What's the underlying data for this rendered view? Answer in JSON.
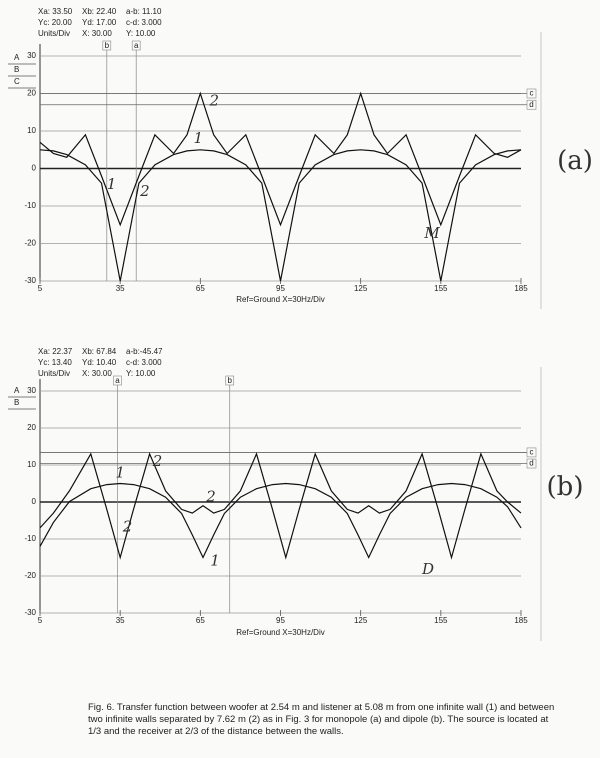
{
  "caption": "Fig. 6.  Transfer function between woofer at 2.54 m and listener at 5.08 m from one infinite wall (1) and between two infinite walls separated by 7.62 m (2) as in Fig. 3 for monopole (a) and dipole (b). The source is located at 1/3 and the receiver at 2/3 of the distance between the walls.",
  "chart_data": [
    {
      "type": "line",
      "panel_label": "(a)",
      "annotation": "M",
      "readouts": [
        [
          "Xa: 33.50",
          "Xb: 22.40",
          "a-b: 11.10"
        ],
        [
          "Yc: 20.00",
          "Yd: 17.00",
          "c-d: 3.000"
        ],
        [
          "Units/Div",
          "X: 30.00",
          "Y: 10.00"
        ]
      ],
      "side_labels": [
        "A",
        "B",
        "C"
      ],
      "x_cursors": [
        {
          "label": "b",
          "x": 30
        },
        {
          "label": "a",
          "x": 41
        }
      ],
      "y_cursors": [
        {
          "label": "c",
          "y": 20
        },
        {
          "label": "d",
          "y": 17
        }
      ],
      "xlabel": "Ref=Ground  X=30Hz/Div",
      "x": [
        5,
        10,
        15,
        22,
        28,
        35,
        42,
        48,
        55,
        60,
        65,
        70,
        75,
        82,
        88,
        95,
        102,
        108,
        115,
        120,
        125,
        130,
        135,
        142,
        148,
        155,
        162,
        168,
        175,
        180,
        185
      ],
      "series": [
        {
          "name": "1",
          "color": "#111111",
          "values": [
            5,
            4.7,
            3.7,
            1,
            -3.9,
            -30,
            -3.9,
            1,
            3.7,
            4.7,
            5,
            4.7,
            3.7,
            1,
            -3.9,
            -30,
            -3.9,
            1,
            3.7,
            4.7,
            5,
            4.7,
            3.7,
            1,
            -3.9,
            -30,
            -3.9,
            1,
            3.7,
            4.7,
            5
          ]
        },
        {
          "name": "2",
          "color": "#111111",
          "values": [
            7,
            4,
            3,
            9,
            -2,
            -15,
            -2,
            9,
            4,
            9,
            20,
            9,
            4,
            9,
            -2,
            -15,
            -2,
            9,
            4,
            9,
            20,
            9,
            4,
            9,
            -2,
            -15,
            -2,
            9,
            4,
            3,
            5
          ]
        }
      ],
      "xlim": [
        5,
        185
      ],
      "xticks": [
        5,
        35,
        65,
        95,
        125,
        155,
        185
      ],
      "ylim": [
        -30,
        30
      ],
      "yticks": [
        -30,
        -20,
        -10,
        0,
        10,
        20,
        30
      ],
      "grid": true
    },
    {
      "type": "line",
      "panel_label": "(b)",
      "annotation": "D",
      "readouts": [
        [
          "Xa: 22.37",
          "Xb: 67.84",
          "a-b:-45.47"
        ],
        [
          "Yc: 13.40",
          "Yd: 10.40",
          "c-d: 3.000"
        ],
        [
          "Units/Div",
          "X: 30.00",
          "Y: 10.00"
        ]
      ],
      "side_labels": [
        "A",
        "B"
      ],
      "x_cursors": [
        {
          "label": "a",
          "x": 34
        },
        {
          "label": "b",
          "x": 76
        }
      ],
      "y_cursors": [
        {
          "label": "c",
          "y": 13.4
        },
        {
          "label": "d",
          "y": 10.4
        }
      ],
      "xlabel": "Ref=Ground  X=30Hz/Div",
      "x": [
        5,
        10,
        16,
        24,
        30,
        35,
        40,
        46,
        52,
        58,
        62,
        66,
        70,
        74,
        80,
        86,
        92,
        97,
        102,
        108,
        114,
        120,
        124,
        128,
        132,
        136,
        142,
        148,
        154,
        159,
        164,
        170,
        176,
        180,
        185
      ],
      "series": [
        {
          "name": "1",
          "color": "#111111",
          "values": [
            -12,
            -5.5,
            0.1,
            3.6,
            4.7,
            5,
            4.7,
            3.6,
            1.3,
            -3.1,
            -8.9,
            -15,
            -8.9,
            -3.1,
            1.3,
            3.6,
            4.7,
            5,
            4.7,
            3.6,
            1.3,
            -3.1,
            -8.9,
            -15,
            -8.9,
            -3.1,
            1.3,
            3.6,
            4.7,
            5,
            4.7,
            3.6,
            1.3,
            -1.3,
            -7
          ]
        },
        {
          "name": "2",
          "color": "#111111",
          "values": [
            -7,
            -3,
            3,
            13,
            -2,
            -15,
            -2,
            13,
            3,
            -2,
            -3,
            -1,
            -3,
            -2,
            3,
            13,
            -2,
            -15,
            -2,
            13,
            3,
            -2,
            -3,
            -1,
            -3,
            -2,
            3,
            13,
            -2,
            -15,
            -2,
            13,
            3,
            0,
            -3
          ]
        }
      ],
      "xlim": [
        5,
        185
      ],
      "xticks": [
        5,
        35,
        65,
        95,
        125,
        155,
        185
      ],
      "ylim": [
        -30,
        30
      ],
      "yticks": [
        -30,
        -20,
        -10,
        0,
        10,
        20,
        30
      ],
      "grid": true
    }
  ]
}
